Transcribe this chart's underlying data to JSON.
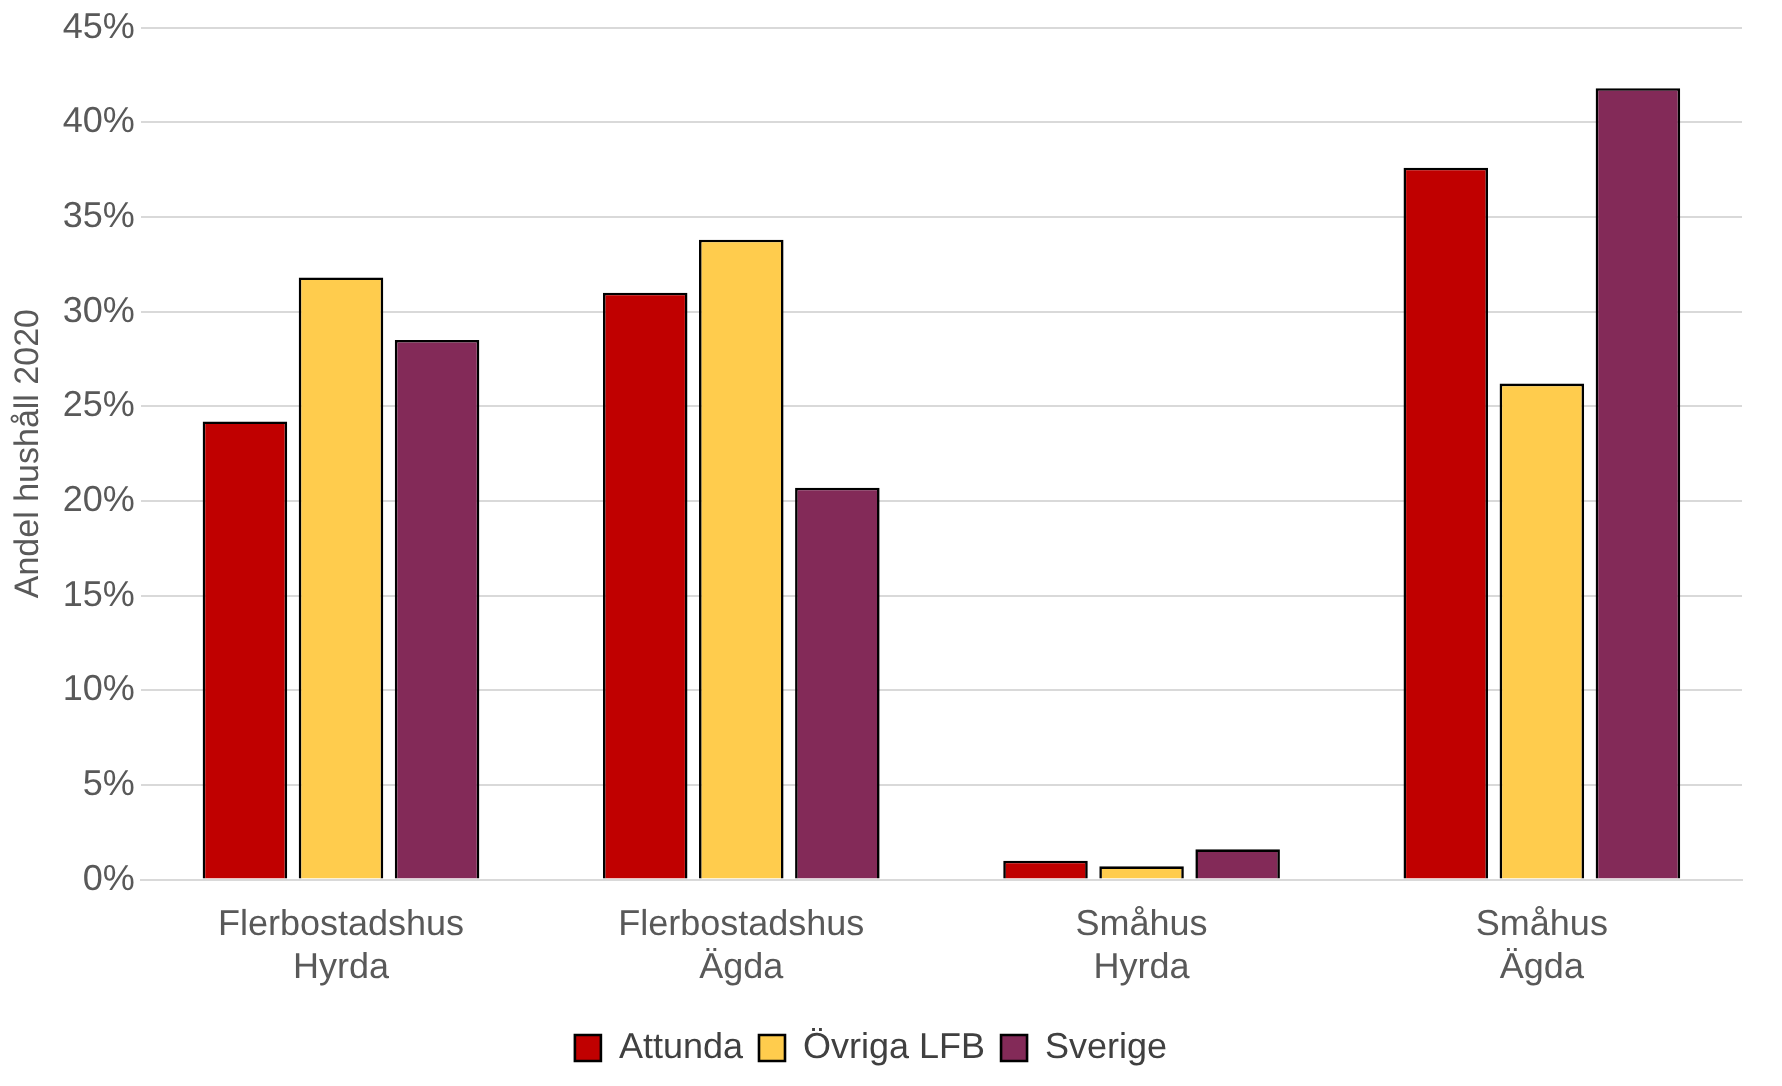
{
  "chart_data": {
    "type": "bar",
    "ylabel": "Andel hushåll 2020",
    "categories": [
      "Flerbostadshus\nHyrda",
      "Flerbostadshus\nÄgda",
      "Småhus\nHyrda",
      "Småhus\nÄgda"
    ],
    "series": [
      {
        "name": "Attunda",
        "color": "#c00000",
        "values": [
          24.2,
          31.0,
          1.0,
          37.6
        ]
      },
      {
        "name": "Övriga LFB",
        "color": "#ffcc4d",
        "values": [
          31.8,
          33.8,
          0.7,
          26.2
        ]
      },
      {
        "name": "Sverige",
        "color": "#832a58",
        "values": [
          28.5,
          20.7,
          1.6,
          41.8
        ]
      }
    ],
    "ylim": [
      0,
      45
    ],
    "yticks": [
      {
        "value": 0,
        "label": "0%"
      },
      {
        "value": 5,
        "label": "5%"
      },
      {
        "value": 10,
        "label": "10%"
      },
      {
        "value": 15,
        "label": "15%"
      },
      {
        "value": 20,
        "label": "20%"
      },
      {
        "value": 25,
        "label": "25%"
      },
      {
        "value": 30,
        "label": "30%"
      },
      {
        "value": 35,
        "label": "35%"
      },
      {
        "value": 40,
        "label": "40%"
      },
      {
        "value": 45,
        "label": "45%"
      }
    ],
    "grid": "y",
    "legend": "bottom"
  }
}
